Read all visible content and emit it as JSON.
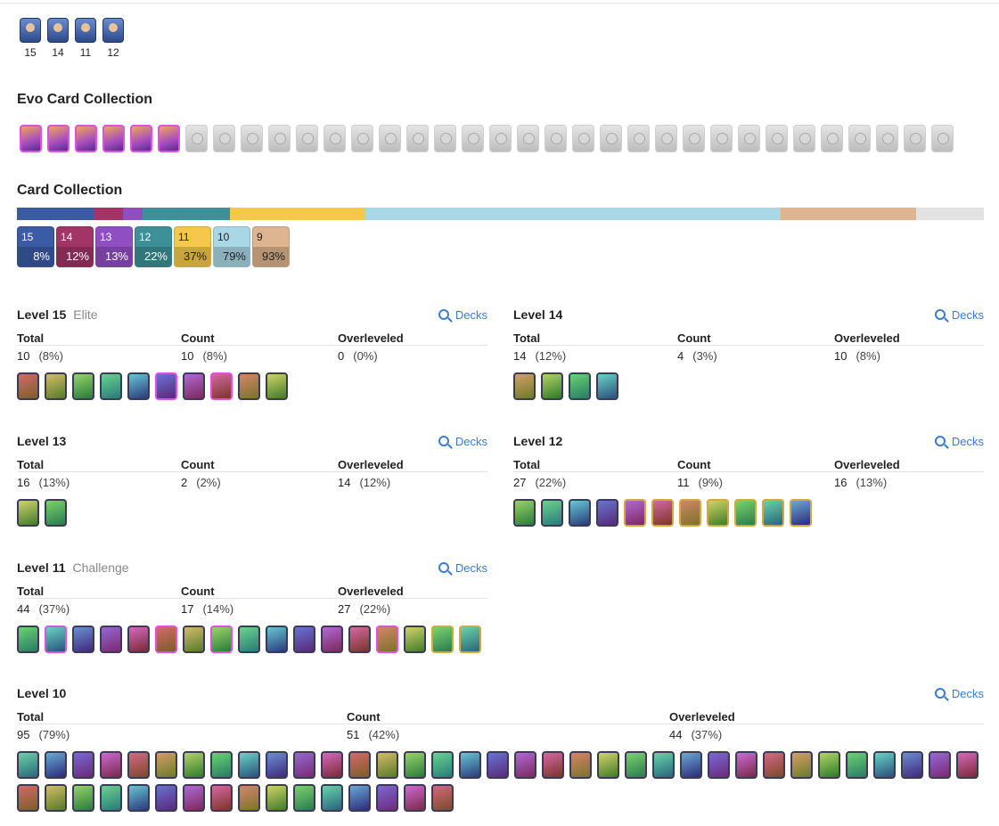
{
  "towers": [
    {
      "level": "15",
      "color": "#6a8ccf"
    },
    {
      "level": "14",
      "color": "#6a8ccf"
    },
    {
      "level": "11",
      "color": "#6a8ccf"
    },
    {
      "level": "12",
      "color": "#6a8ccf"
    }
  ],
  "evo_section": {
    "title": "Evo Card Collection",
    "owned_count": 6,
    "missing_count": 28
  },
  "collection": {
    "title": "Card Collection",
    "bar_segments": [
      {
        "level": "15",
        "share": 8,
        "color": "#3b5ba5"
      },
      {
        "level": "14",
        "share": 3,
        "color": "#a23566"
      },
      {
        "level": "13",
        "share": 2,
        "color": "#8f4fc2"
      },
      {
        "level": "12",
        "share": 9,
        "color": "#3e9098"
      },
      {
        "level": "11",
        "share": 14,
        "color": "#f6c84a"
      },
      {
        "level": "10",
        "share": 43,
        "color": "#a9d7e6"
      },
      {
        "level": "9",
        "share": 14,
        "color": "#ddb591"
      },
      {
        "level": "missing",
        "share": 7,
        "color": "#e2e2e2"
      }
    ],
    "chips": [
      {
        "level": "15",
        "pct": "8%",
        "bg": "#3b5ba5",
        "fg": "#ffffff"
      },
      {
        "level": "14",
        "pct": "12%",
        "bg": "#a23566",
        "fg": "#ffffff"
      },
      {
        "level": "13",
        "pct": "13%",
        "bg": "#8f4fc2",
        "fg": "#ffffff"
      },
      {
        "level": "12",
        "pct": "22%",
        "bg": "#3e9098",
        "fg": "#ffffff"
      },
      {
        "level": "11",
        "pct": "37%",
        "bg": "#f6c84a",
        "fg": "#222222"
      },
      {
        "level": "10",
        "pct": "79%",
        "bg": "#a9d7e6",
        "fg": "#222222"
      },
      {
        "level": "9",
        "pct": "93%",
        "bg": "#ddb591",
        "fg": "#222222"
      }
    ]
  },
  "labels": {
    "total": "Total",
    "count": "Count",
    "overleveled": "Overleveled",
    "decks": "Decks"
  },
  "levels": [
    {
      "title": "Level 15",
      "subtitle": "Elite",
      "total": "10",
      "total_pct": "(8%)",
      "count": "10",
      "count_pct": "(8%)",
      "over": "0",
      "over_pct": "(0%)",
      "cards": [
        "n",
        "n",
        "n",
        "n",
        "n",
        "e",
        "n",
        "e",
        "n",
        "n"
      ]
    },
    {
      "title": "Level 14",
      "subtitle": "",
      "total": "14",
      "total_pct": "(12%)",
      "count": "4",
      "count_pct": "(3%)",
      "over": "10",
      "over_pct": "(8%)",
      "cards": [
        "n",
        "n",
        "n",
        "n"
      ]
    },
    {
      "title": "Level 13",
      "subtitle": "",
      "total": "16",
      "total_pct": "(13%)",
      "count": "2",
      "count_pct": "(2%)",
      "over": "14",
      "over_pct": "(12%)",
      "cards": [
        "n",
        "n"
      ]
    },
    {
      "title": "Level 12",
      "subtitle": "",
      "total": "27",
      "total_pct": "(22%)",
      "count": "11",
      "count_pct": "(9%)",
      "over": "16",
      "over_pct": "(13%)",
      "cards": [
        "n",
        "n",
        "n",
        "n",
        "c",
        "c",
        "c",
        "c",
        "c",
        "c",
        "c"
      ]
    },
    {
      "title": "Level 11",
      "subtitle": "Challenge",
      "total": "44",
      "total_pct": "(37%)",
      "count": "17",
      "count_pct": "(14%)",
      "over": "27",
      "over_pct": "(22%)",
      "cards": [
        "n",
        "e",
        "n",
        "n",
        "n",
        "e",
        "n",
        "e",
        "n",
        "n",
        "n",
        "n",
        "n",
        "e",
        "n",
        "c",
        "c"
      ]
    },
    {
      "title": "Level 10",
      "subtitle": "",
      "total": "95",
      "total_pct": "(79%)",
      "count": "51",
      "count_pct": "(42%)",
      "over": "44",
      "over_pct": "(37%)",
      "cards": [
        "n",
        "n",
        "n",
        "n",
        "n",
        "n",
        "n",
        "n",
        "n",
        "n",
        "n",
        "n",
        "n",
        "n",
        "n",
        "n",
        "n",
        "n",
        "n",
        "n",
        "n",
        "n",
        "n",
        "n",
        "n",
        "n",
        "n",
        "n",
        "n",
        "n",
        "n",
        "n",
        "n",
        "n",
        "n",
        "n",
        "n",
        "n",
        "n",
        "n",
        "n",
        "n",
        "n",
        "n",
        "n",
        "n",
        "n",
        "n",
        "n",
        "n",
        "n"
      ]
    }
  ]
}
